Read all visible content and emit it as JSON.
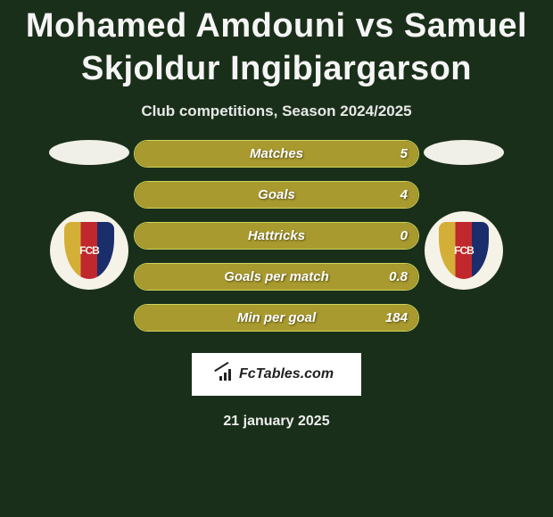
{
  "title": "Mohamed Amdouni vs Samuel Skjoldur Ingibjargarson",
  "subtitle": "Club competitions, Season 2024/2025",
  "date": "21 january 2025",
  "branding": "FcTables.com",
  "colors": {
    "background": "#1a2f1a",
    "bar_fill": "#a89a2e",
    "bar_border": "#cfd45a",
    "text": "#ffffff"
  },
  "player_left": {
    "flag_color": "#f0f0e8",
    "club": "FC Basel"
  },
  "player_right": {
    "flag_color": "#f0f0e8",
    "club": "FC Basel"
  },
  "stats": [
    {
      "label": "Matches",
      "value_right": "5",
      "fill_pct": 100
    },
    {
      "label": "Goals",
      "value_right": "4",
      "fill_pct": 100
    },
    {
      "label": "Hattricks",
      "value_right": "0",
      "fill_pct": 100
    },
    {
      "label": "Goals per match",
      "value_right": "0.8",
      "fill_pct": 100
    },
    {
      "label": "Min per goal",
      "value_right": "184",
      "fill_pct": 100
    }
  ]
}
